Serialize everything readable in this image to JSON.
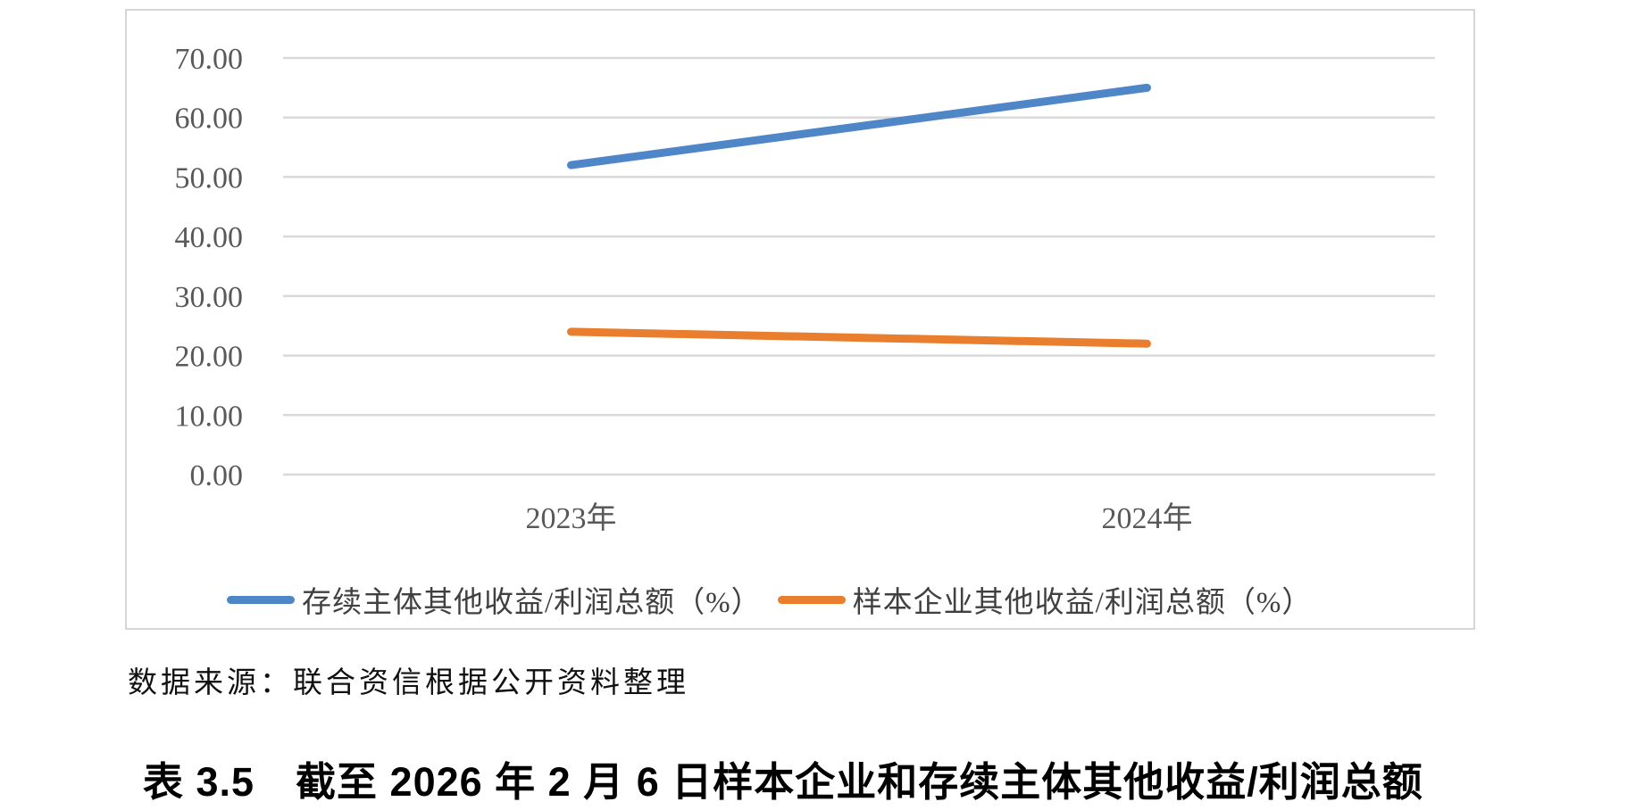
{
  "chart_data": {
    "type": "line",
    "categories": [
      "2023年",
      "2024年"
    ],
    "series": [
      {
        "name": "存续主体其他收益/利润总额（%）",
        "values": [
          52.0,
          65.0
        ],
        "color": "#4E86C8"
      },
      {
        "name": "样本企业其他收益/利润总额（%）",
        "values": [
          24.0,
          22.0
        ],
        "color": "#E87E2E"
      }
    ],
    "ylim": [
      0,
      70
    ],
    "ytick_labels": [
      "0.00",
      "10.00",
      "20.00",
      "30.00",
      "40.00",
      "50.00",
      "60.00",
      "70.00"
    ],
    "grid": true,
    "legend_position": "bottom",
    "style": {
      "gridline_color": "#D9D9D9",
      "axis_text_color": "#595959",
      "line_width": 9,
      "axis_font_size": 34
    }
  },
  "caption": {
    "source_note": "数据来源：联合资信根据公开资料整理"
  },
  "table_title": {
    "text": "表 3.5　截至 2026 年 2 月 6 日样本企业和存续主体其他收益/利润总额"
  }
}
